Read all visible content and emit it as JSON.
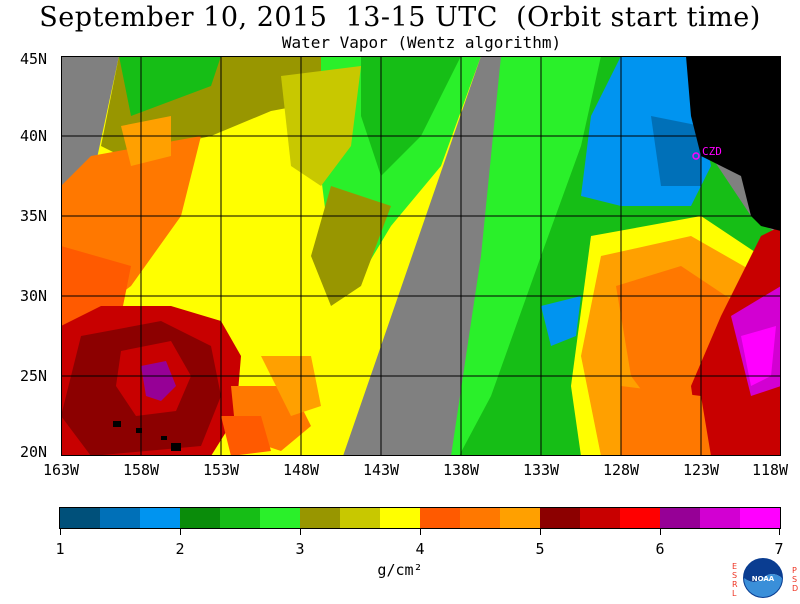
{
  "title": "September 10, 2015  13-15 UTC  (Orbit start time)",
  "subtitle": "Water Vapor (Wentz algorithm)",
  "map": {
    "lat_labels": [
      "45N",
      "40N",
      "35N",
      "30N",
      "25N",
      "20N"
    ],
    "lon_labels": [
      "163W",
      "158W",
      "153W",
      "148W",
      "143W",
      "138W",
      "133W",
      "128W",
      "123W",
      "118W"
    ],
    "place_label": "CZD",
    "colors": {
      "no_data": "#808080",
      "land": "#000000",
      "grid": "#000000",
      "place_marker": "#ff00ff"
    }
  },
  "colorbar": {
    "labels": [
      "1",
      "2",
      "3",
      "4",
      "5",
      "6",
      "7"
    ],
    "units": "g/cm²",
    "colors": [
      "#00507a",
      "#0070b8",
      "#0094f0",
      "#0a8c0a",
      "#16be16",
      "#2af02a",
      "#989600",
      "#c8c800",
      "#ffff00",
      "#ff5a00",
      "#ff7800",
      "#ffa000",
      "#8c0000",
      "#c80000",
      "#ff0000",
      "#960096",
      "#d200d2",
      "#ff00ff"
    ]
  },
  "logo": {
    "left_text": "ESRL",
    "right_text": "PSD",
    "center_text": "NOAA"
  }
}
